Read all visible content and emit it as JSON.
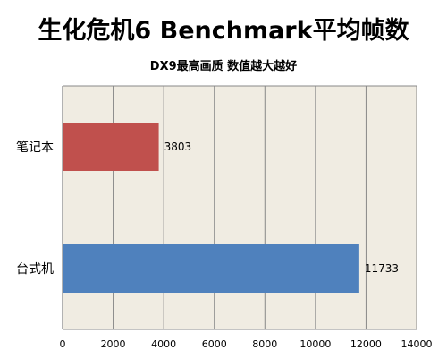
{
  "chart_data": {
    "type": "bar",
    "orientation": "horizontal",
    "title": "生化危机6 Benchmark平均帧数",
    "subtitle": "DX9最高画质     数值越大越好",
    "categories": [
      "笔记本",
      "台式机"
    ],
    "values": [
      3803,
      11733
    ],
    "bar_colors": [
      "#c0504d",
      "#4f81bd"
    ],
    "data_labels": [
      "3803",
      "11733"
    ],
    "xlim": [
      0,
      14000
    ],
    "x_ticks": [
      0,
      2000,
      4000,
      6000,
      8000,
      10000,
      12000,
      14000
    ],
    "x_tick_labels": [
      "0",
      "2000",
      "4000",
      "6000",
      "8000",
      "10000",
      "12000",
      "14000"
    ],
    "grid": true,
    "legend": "none",
    "plot_background": "#f0ece2",
    "grid_color": "#888888"
  }
}
